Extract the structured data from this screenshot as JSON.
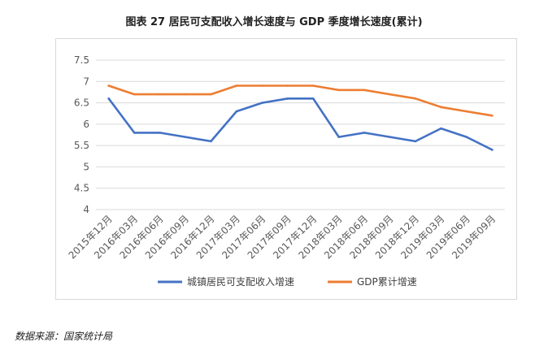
{
  "title": "图表 27 居民可支配收入增长速度与 GDP 季度增长速度(累计)",
  "source": "数据来源：国家统计局",
  "chart_data": {
    "type": "line",
    "title": "图表 27 居民可支配收入增长速度与 GDP 季度增长速度(累计)",
    "categories": [
      "2015年12月",
      "2016年03月",
      "2016年06月",
      "2016年09月",
      "2016年12月",
      "2017年03月",
      "2017年06月",
      "2017年09月",
      "2017年12月",
      "2018年03月",
      "2018年06月",
      "2018年09月",
      "2018年12月",
      "2019年03月",
      "2019年06月",
      "2019年09月"
    ],
    "yticks": [
      "7.5",
      "7",
      "6.5",
      "6",
      "5.5",
      "5",
      "4.5",
      "4"
    ],
    "ylim": [
      4,
      7.5
    ],
    "grid": true,
    "legend_position": "bottom",
    "series": [
      {
        "name": "城镇居民可支配收入增速",
        "color": "#4472c4",
        "values": [
          6.6,
          5.8,
          5.8,
          5.7,
          5.6,
          6.3,
          6.5,
          6.6,
          6.6,
          5.7,
          5.8,
          5.7,
          5.6,
          5.9,
          5.7,
          5.4
        ]
      },
      {
        "name": "GDP累计增速",
        "color": "#ed7d31",
        "values": [
          6.9,
          6.7,
          6.7,
          6.7,
          6.7,
          6.9,
          6.9,
          6.9,
          6.9,
          6.8,
          6.8,
          6.7,
          6.6,
          6.4,
          6.3,
          6.2
        ]
      }
    ]
  }
}
